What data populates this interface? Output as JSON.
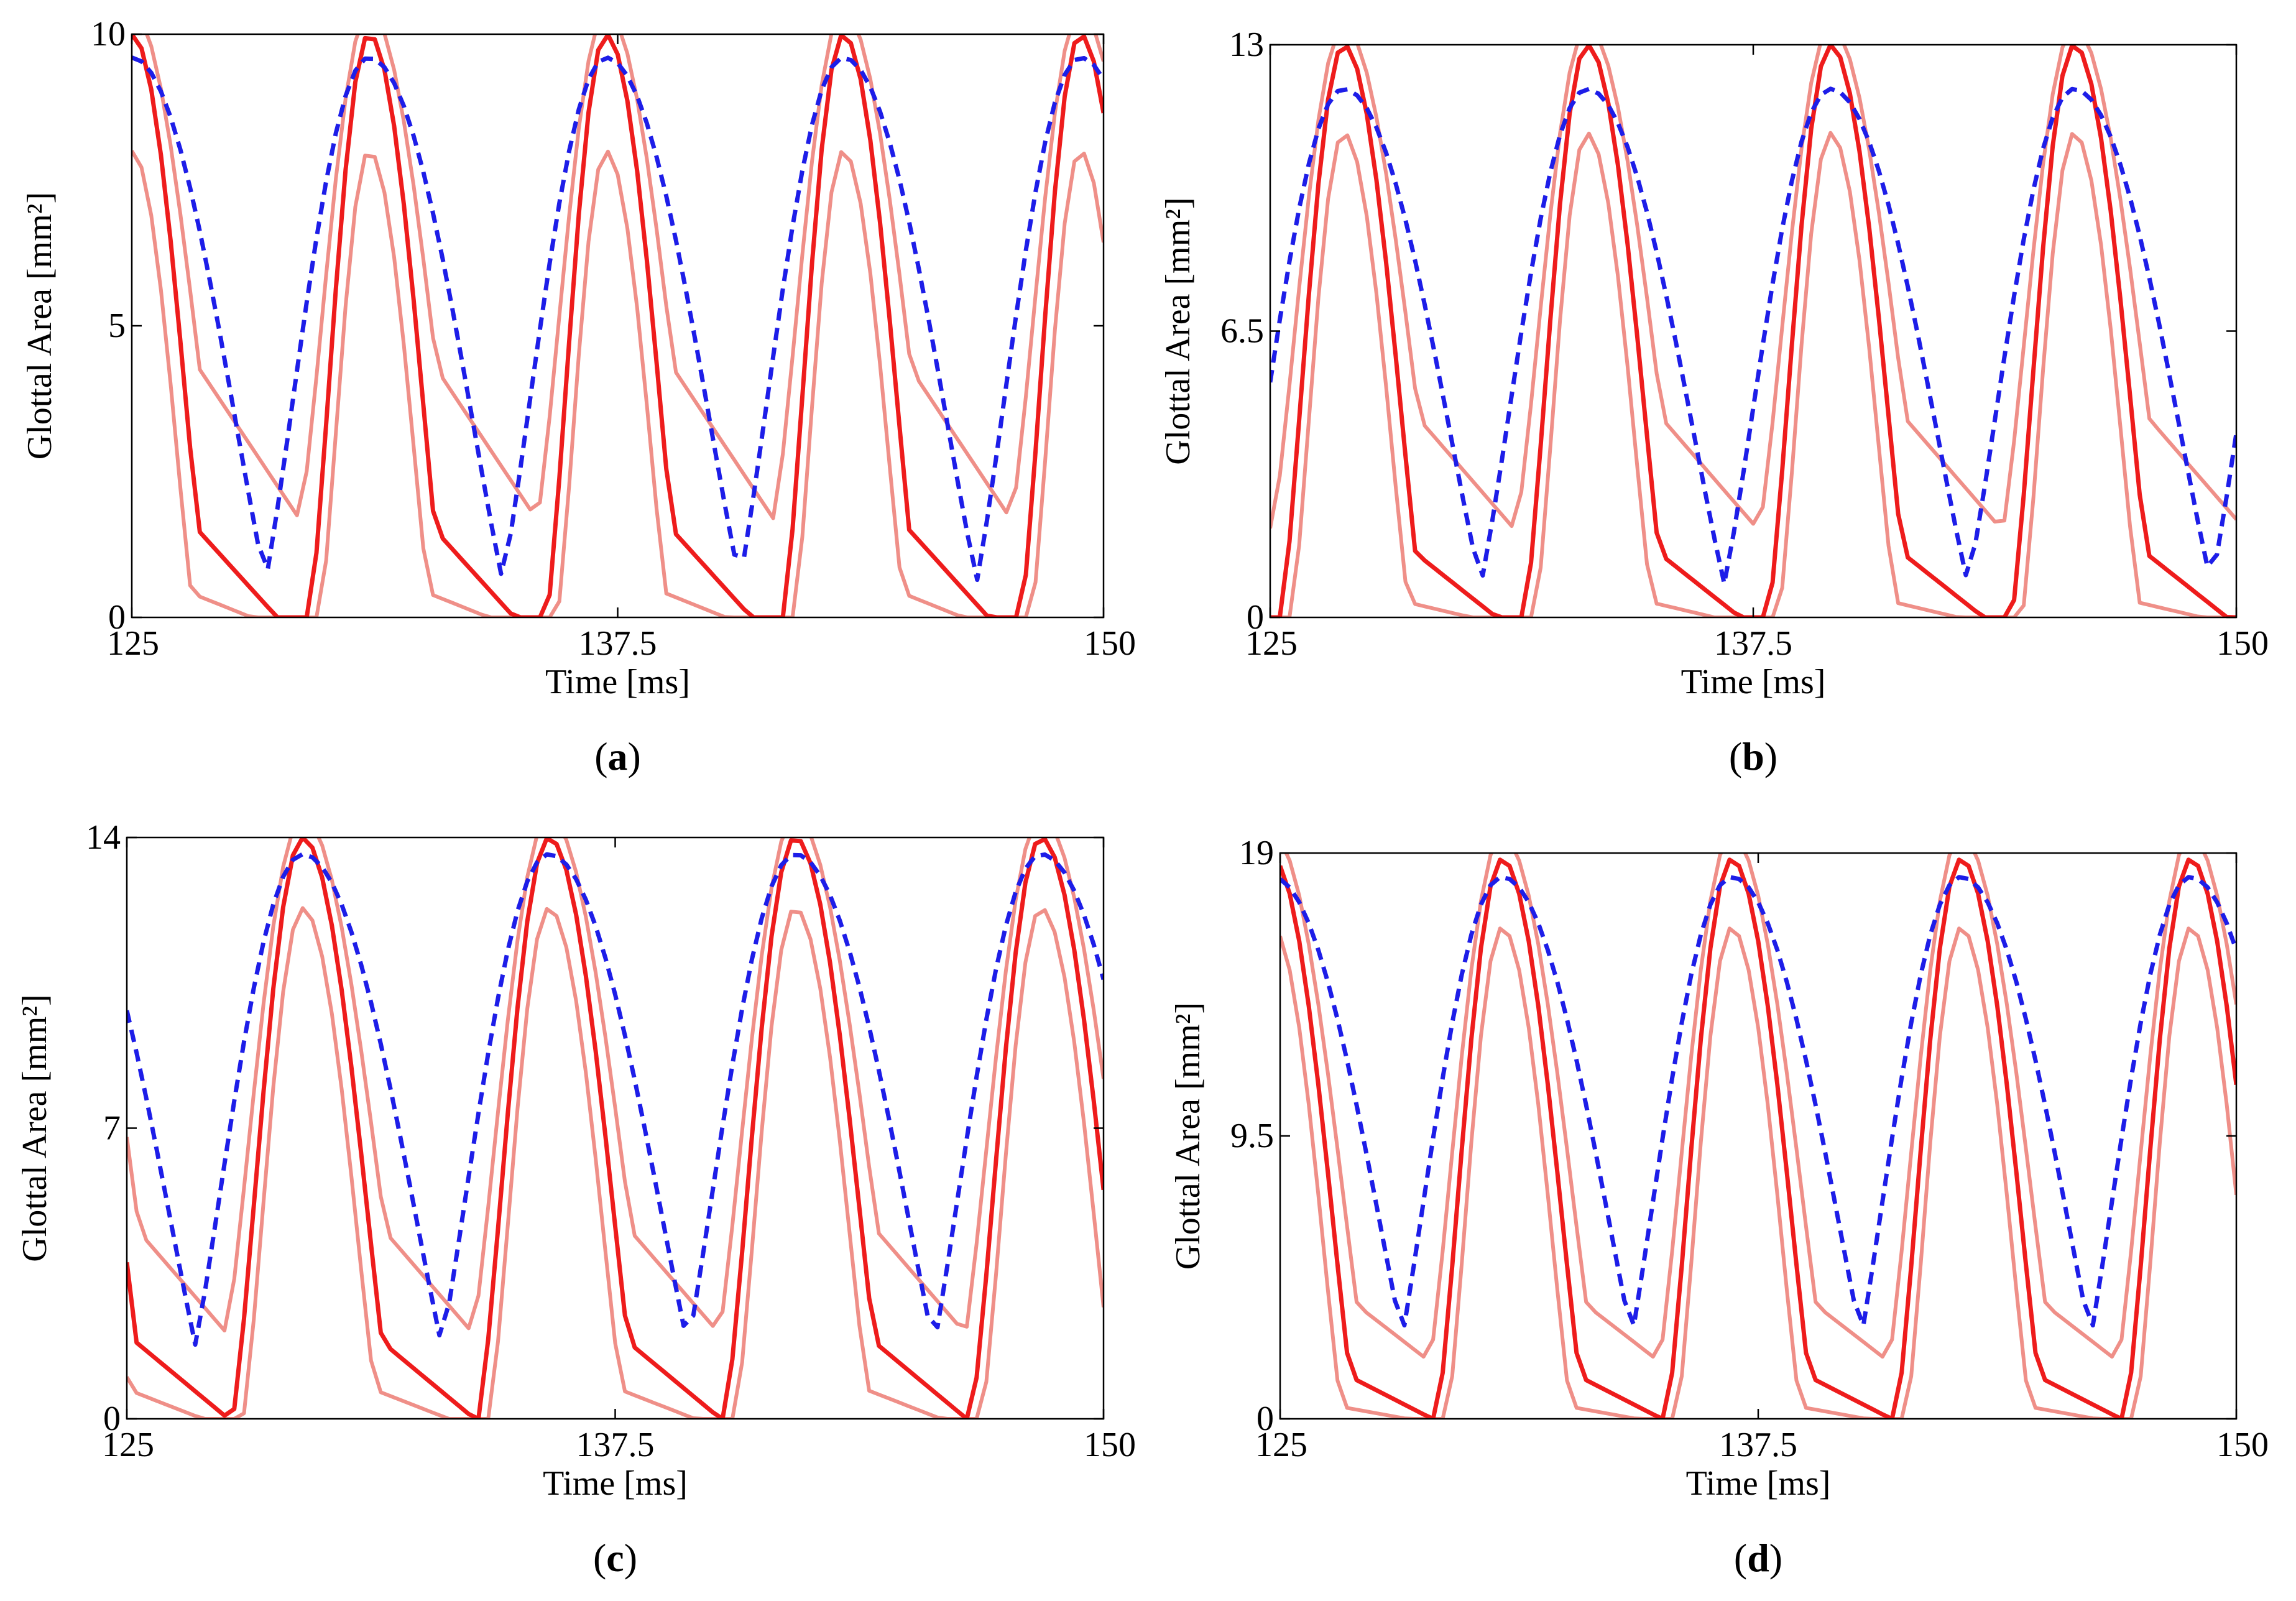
{
  "figure": {
    "colors": {
      "measured_mean": "#ee1c1c",
      "measured_bounds": "#ef8f88",
      "simulated": "#1d1de8",
      "axes": "#000000"
    },
    "series_names": [
      "measured_mean",
      "measured_bounds",
      "simulated"
    ]
  },
  "chart_data": [
    {
      "id": "a",
      "type": "line",
      "panel_label": "a",
      "xlabel": "Time [ms]",
      "ylabel": "Glottal Area [mm²]",
      "xlim": [
        125,
        150
      ],
      "ylim": [
        0,
        10
      ],
      "xticks": [
        "125",
        "137.5",
        "150"
      ],
      "yticks": [
        "0",
        "5",
        "10"
      ],
      "period_ms": 6.1,
      "first_peak_ms": 131.1,
      "series": [
        {
          "name": "measured_mean",
          "peak": 10.0,
          "floor": 0.0,
          "width_ms": 1.7,
          "tail": 2.0
        },
        {
          "name": "measured_bounds_upper",
          "peak": 10.4,
          "floor": 1.6,
          "width_ms": 2.0,
          "tail": 3.2
        },
        {
          "name": "measured_bounds_lower",
          "peak": 8.0,
          "floor": 0.0,
          "width_ms": 1.4,
          "tail": 0.6
        },
        {
          "name": "simulated",
          "peak": 9.6,
          "floor": 0.0,
          "width_ms": 3.2,
          "tail": 0.0
        }
      ]
    },
    {
      "id": "b",
      "type": "line",
      "panel_label": "b",
      "xlabel": "Time [ms]",
      "ylabel": "Glottal Area [mm²]",
      "xlim": [
        125,
        150
      ],
      "ylim": [
        0,
        13
      ],
      "xticks": [
        "125",
        "137.5",
        "150"
      ],
      "yticks": [
        "0",
        "6.5",
        "13"
      ],
      "period_ms": 6.3,
      "first_peak_ms": 126.9,
      "series": [
        {
          "name": "measured_mean",
          "peak": 13.0,
          "floor": 0.0,
          "width_ms": 1.8,
          "tail": 2.0
        },
        {
          "name": "measured_bounds_upper",
          "peak": 13.4,
          "floor": 1.8,
          "width_ms": 2.1,
          "tail": 3.4
        },
        {
          "name": "measured_bounds_lower",
          "peak": 11.0,
          "floor": 0.0,
          "width_ms": 1.5,
          "tail": 0.5
        },
        {
          "name": "simulated",
          "peak": 12.0,
          "floor": 0.0,
          "width_ms": 3.3,
          "tail": 0.0
        }
      ]
    },
    {
      "id": "c",
      "type": "line",
      "panel_label": "c",
      "xlabel": "Time [ms]",
      "ylabel": "Glottal Area [mm²]",
      "xlim": [
        125,
        150
      ],
      "ylim": [
        0,
        14
      ],
      "xticks": [
        "125",
        "137.5",
        "150"
      ],
      "yticks": [
        "0",
        "7",
        "14"
      ],
      "period_ms": 6.3,
      "first_peak_ms": 129.5,
      "series": [
        {
          "name": "measured_mean",
          "peak": 14.0,
          "floor": 0.0,
          "width_ms": 2.0,
          "tail": 2.5
        },
        {
          "name": "measured_bounds_upper",
          "peak": 14.5,
          "floor": 1.3,
          "width_ms": 2.3,
          "tail": 4.0
        },
        {
          "name": "measured_bounds_lower",
          "peak": 12.3,
          "floor": 0.0,
          "width_ms": 1.7,
          "tail": 1.0
        },
        {
          "name": "simulated",
          "peak": 13.6,
          "floor": 0.0,
          "width_ms": 3.5,
          "tail": 0.0
        }
      ]
    },
    {
      "id": "d",
      "type": "line",
      "panel_label": "d",
      "xlabel": "Time [ms]",
      "ylabel": "Glottal Area [mm²]",
      "xlim": [
        125,
        150
      ],
      "ylim": [
        0,
        19
      ],
      "xticks": [
        "125",
        "137.5",
        "150"
      ],
      "yticks": [
        "0",
        "9.5",
        "19"
      ],
      "period_ms": 6.0,
      "first_peak_ms": 130.8,
      "series": [
        {
          "name": "measured_mean",
          "peak": 18.8,
          "floor": 0.0,
          "width_ms": 1.9,
          "tail": 2.0
        },
        {
          "name": "measured_bounds_upper",
          "peak": 19.6,
          "floor": 1.2,
          "width_ms": 2.2,
          "tail": 3.5
        },
        {
          "name": "measured_bounds_lower",
          "peak": 16.5,
          "floor": 0.0,
          "width_ms": 1.6,
          "tail": 0.6
        },
        {
          "name": "simulated",
          "peak": 18.2,
          "floor": 0.0,
          "width_ms": 3.4,
          "tail": 0.0
        }
      ]
    }
  ]
}
